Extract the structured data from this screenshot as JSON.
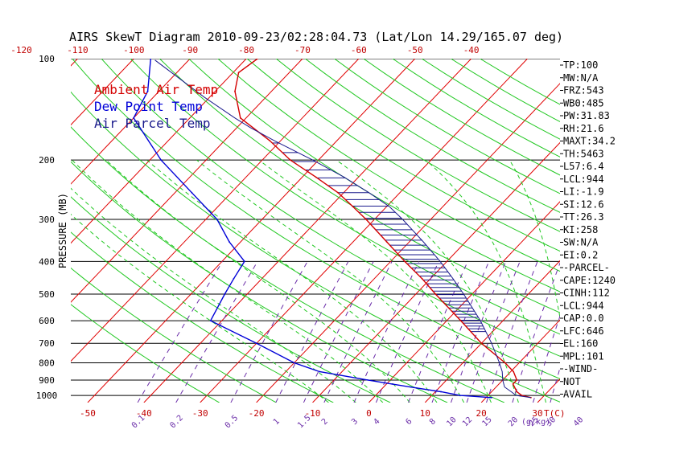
{
  "title": "AIRS SkewT Diagram 2010-09-23/02:28:04.73 (Lat/Lon 14.29/165.07 deg)",
  "colors": {
    "ambient": "#d40000",
    "dewpoint": "#0000d8",
    "parcel": "#1a1a8c",
    "isotherm": "#e00000",
    "dry_adiabat": "#22c822",
    "moist_adiabat": "#22c822",
    "mixing_ratio": "#6a2ca8",
    "top_ticks": "#c00000",
    "bottom_ticks": "#c00000",
    "mix_labels": "#6a2ca8",
    "grid": "#000000"
  },
  "legend": [
    {
      "label": "Ambient Air Temp",
      "color": "#d40000"
    },
    {
      "label": "Dew Point Temp",
      "color": "#0000d8"
    },
    {
      "label": "Air Parcel Temp",
      "color": "#1a1a8c"
    }
  ],
  "indices": [
    "TP:100",
    "MW:N/A",
    "FRZ:543",
    "WB0:485",
    "PW:31.83",
    "RH:21.6",
    "MAXT:34.2",
    "TH:5463",
    "L57:6.4",
    "LCL:944",
    "LI:-1.9",
    "SI:12.6",
    "TT:26.3",
    "KI:258",
    "SW:N/A",
    "EI:0.2",
    "-PARCEL-",
    "CAPE:1240",
    "CINH:112",
    "LCL:944",
    "CAP:0.0",
    "LFC:646",
    "EL:160",
    "MPL:101",
    "-WIND-",
    "NOT",
    "AVAIL"
  ],
  "chart_data": {
    "type": "line",
    "title": "AIRS SkewT Diagram 2010-09-23/02:28:04.73 (Lat/Lon 14.29/165.07 deg)",
    "ylabel": "PRESSURE (MB)",
    "xlabel": "T(C)",
    "mixing_label": "(g/kg)",
    "y_scale": "log",
    "ylim": [
      1050,
      100
    ],
    "xlim_at_1050mb": [
      -53,
      34
    ],
    "skew_deg_per_decade": 57,
    "top_axis_ticks": [
      -120,
      -110,
      -100,
      -90,
      -80,
      -70,
      -60,
      -50,
      -40
    ],
    "bottom_axis_ticks": [
      -50,
      -40,
      -30,
      -20,
      -10,
      0,
      10,
      20,
      30
    ],
    "pressure_levels": [
      100,
      200,
      300,
      400,
      500,
      600,
      700,
      800,
      900,
      1000
    ],
    "isotherms": [
      -160,
      -150,
      -140,
      -130,
      -120,
      -110,
      -100,
      -90,
      -80,
      -70,
      -60,
      -50,
      -40,
      -30,
      -20,
      -10,
      0,
      10,
      20,
      30,
      40
    ],
    "dry_adiabats_theta_c": [
      -30,
      -20,
      -10,
      0,
      10,
      20,
      30,
      40,
      50,
      60,
      70,
      80,
      90,
      100,
      110,
      120,
      130,
      140,
      150,
      160,
      170,
      180
    ],
    "moist_adiabats_c": [
      -10,
      -5,
      0,
      5,
      10,
      15,
      20,
      25,
      30,
      35
    ],
    "mixing_ratios": [
      "0.1",
      "0.2",
      "0.5",
      "1",
      "1.5",
      "2",
      "3",
      "4",
      "6",
      "8",
      "10",
      "12",
      "15",
      "20",
      "25",
      "30",
      "40"
    ],
    "series": [
      {
        "name": "Ambient Air Temp",
        "points": [
          [
            1015,
            28
          ],
          [
            1000,
            26
          ],
          [
            975,
            24.5
          ],
          [
            925,
            22.5
          ],
          [
            900,
            22.5
          ],
          [
            850,
            20.5
          ],
          [
            800,
            17.5
          ],
          [
            700,
            10
          ],
          [
            600,
            2.5
          ],
          [
            500,
            -6.5
          ],
          [
            450,
            -11.5
          ],
          [
            400,
            -17.5
          ],
          [
            350,
            -24
          ],
          [
            300,
            -31.5
          ],
          [
            275,
            -36
          ],
          [
            250,
            -41
          ],
          [
            225,
            -47.5
          ],
          [
            200,
            -55
          ],
          [
            175,
            -62
          ],
          [
            150,
            -71
          ],
          [
            125,
            -76.5
          ],
          [
            110,
            -79
          ],
          [
            100,
            -78
          ]
        ]
      },
      {
        "name": "Dew Point Temp",
        "points": [
          [
            1015,
            21
          ],
          [
            1000,
            15
          ],
          [
            975,
            11
          ],
          [
            950,
            6
          ],
          [
            925,
            1
          ],
          [
            900,
            -4
          ],
          [
            850,
            -14
          ],
          [
            800,
            -20
          ],
          [
            700,
            -30
          ],
          [
            600,
            -42
          ],
          [
            500,
            -44
          ],
          [
            450,
            -45
          ],
          [
            400,
            -46
          ],
          [
            350,
            -52
          ],
          [
            300,
            -58
          ],
          [
            250,
            -67
          ],
          [
            200,
            -78
          ],
          [
            150,
            -90
          ],
          [
            125,
            -92
          ],
          [
            100,
            -97
          ]
        ]
      },
      {
        "name": "Air Parcel Temp",
        "points": [
          [
            1015,
            28
          ],
          [
            1000,
            25
          ],
          [
            975,
            23.5
          ],
          [
            944,
            21.5
          ],
          [
            900,
            20
          ],
          [
            850,
            18.5
          ],
          [
            800,
            16.5
          ],
          [
            700,
            11.8
          ],
          [
            600,
            6
          ],
          [
            500,
            -1.5
          ],
          [
            450,
            -6
          ],
          [
            400,
            -11.2
          ],
          [
            350,
            -17.5
          ],
          [
            300,
            -25
          ],
          [
            275,
            -29.5
          ],
          [
            250,
            -35.5
          ],
          [
            225,
            -42.5
          ],
          [
            200,
            -51
          ],
          [
            175,
            -61.2
          ],
          [
            160,
            -67.7
          ],
          [
            150,
            -72
          ],
          [
            130,
            -81
          ],
          [
            101,
            -96
          ]
        ]
      }
    ]
  }
}
